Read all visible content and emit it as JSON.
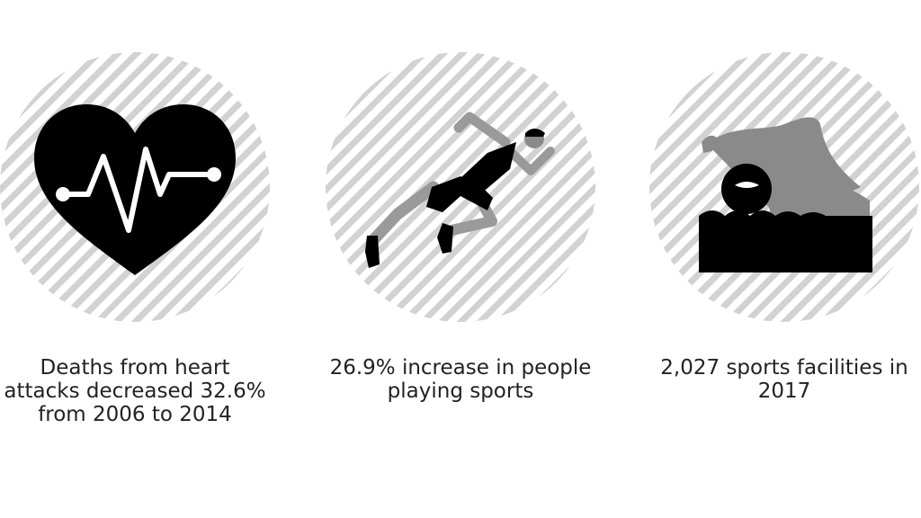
{
  "items": [
    {
      "icon": "heartbeat-icon",
      "caption": "Deaths from heart\nattacks decreased 32.6%\nfrom 2006 to 2014"
    },
    {
      "icon": "runner-icon",
      "caption": "26.9% increase in people\nplaying sports"
    },
    {
      "icon": "swimmer-icon",
      "caption": "2,027 sports facilities in\n2017"
    }
  ],
  "colors": {
    "stripe": "#d2d2d2",
    "ink": "#000000",
    "text": "#222222",
    "figure_gray": "#8a8a8a"
  }
}
